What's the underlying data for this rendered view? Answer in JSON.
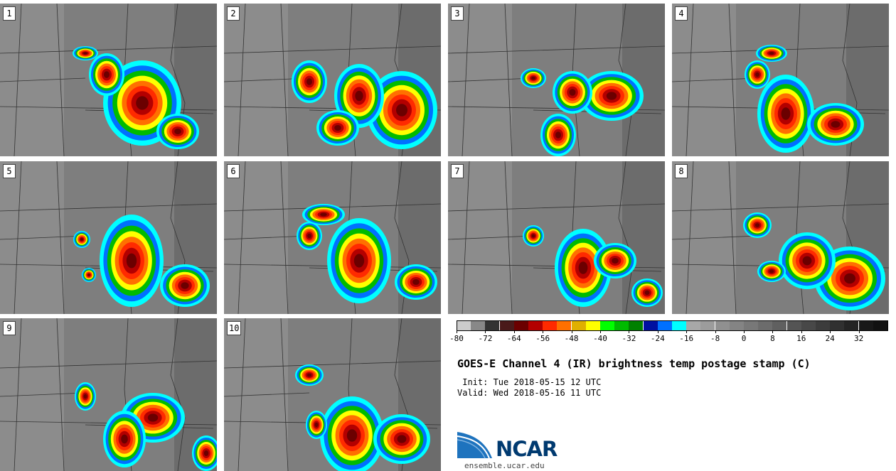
{
  "panels": [
    {
      "label": "1",
      "blobs": [
        [
          200,
          140,
          55,
          60
        ],
        [
          250,
          180,
          30,
          25
        ],
        [
          150,
          100,
          25,
          30
        ],
        [
          120,
          70,
          18,
          10
        ]
      ]
    },
    {
      "label": "2",
      "blobs": [
        [
          250,
          150,
          50,
          55
        ],
        [
          190,
          130,
          35,
          45
        ],
        [
          120,
          110,
          25,
          30
        ],
        [
          160,
          175,
          30,
          25
        ]
      ]
    },
    {
      "label": "3",
      "blobs": [
        [
          230,
          130,
          45,
          35
        ],
        [
          175,
          125,
          28,
          30
        ],
        [
          155,
          185,
          25,
          30
        ],
        [
          120,
          105,
          18,
          14
        ]
      ]
    },
    {
      "label": "4",
      "blobs": [
        [
          160,
          155,
          40,
          55
        ],
        [
          230,
          170,
          40,
          30
        ],
        [
          120,
          100,
          18,
          20
        ],
        [
          140,
          70,
          22,
          12
        ]
      ]
    },
    {
      "label": "5",
      "blobs": [
        [
          185,
          140,
          45,
          65
        ],
        [
          260,
          175,
          35,
          30
        ],
        [
          115,
          110,
          12,
          12
        ],
        [
          125,
          160,
          10,
          10
        ]
      ]
    },
    {
      "label": "6",
      "blobs": [
        [
          190,
          140,
          45,
          60
        ],
        [
          270,
          170,
          30,
          25
        ],
        [
          120,
          105,
          18,
          20
        ],
        [
          140,
          75,
          30,
          15
        ]
      ]
    },
    {
      "label": "7",
      "blobs": [
        [
          190,
          150,
          40,
          55
        ],
        [
          235,
          140,
          30,
          25
        ],
        [
          120,
          105,
          15,
          15
        ],
        [
          280,
          185,
          22,
          20
        ]
      ]
    },
    {
      "label": "8",
      "blobs": [
        [
          250,
          165,
          50,
          45
        ],
        [
          190,
          140,
          40,
          40
        ],
        [
          120,
          90,
          20,
          18
        ],
        [
          140,
          155,
          20,
          15
        ]
      ]
    },
    {
      "label": "9",
      "blobs": [
        [
          215,
          140,
          45,
          35
        ],
        [
          175,
          170,
          30,
          40
        ],
        [
          290,
          190,
          20,
          25
        ],
        [
          120,
          110,
          15,
          20
        ]
      ]
    },
    {
      "label": "10",
      "blobs": [
        [
          180,
          165,
          45,
          55
        ],
        [
          250,
          170,
          40,
          35
        ],
        [
          130,
          150,
          15,
          20
        ],
        [
          120,
          80,
          20,
          15
        ]
      ]
    }
  ],
  "colorbar": {
    "colors": [
      "#cccccc",
      "#888888",
      "#333333",
      "#4a1a1a",
      "#6b0000",
      "#b30000",
      "#ff2a00",
      "#ff7000",
      "#e0b000",
      "#ffff00",
      "#00ff00",
      "#00bb00",
      "#008000",
      "#0010a0",
      "#0070ff",
      "#00ffff",
      "#a8a8a8",
      "#9c9c9c",
      "#909090",
      "#848484",
      "#787878",
      "#6c6c6c",
      "#606060",
      "#545454",
      "#484848",
      "#3c3c3c",
      "#303030",
      "#242424",
      "#181818",
      "#111111"
    ],
    "ticks": [
      "-80",
      "-72",
      "-64",
      "-56",
      "-48",
      "-40",
      "-32",
      "-24",
      "-16",
      "-8",
      "0",
      "8",
      "16",
      "24",
      "32"
    ]
  },
  "title": "GOES-E Channel 4 (IR) brightness temp postage stamp (C)",
  "init": " Init: Tue 2018-05-15 12 UTC",
  "valid": "Valid: Wed 2018-05-16 11 UTC",
  "logo_text": "NCAR",
  "site": "ensemble.ucar.edu"
}
